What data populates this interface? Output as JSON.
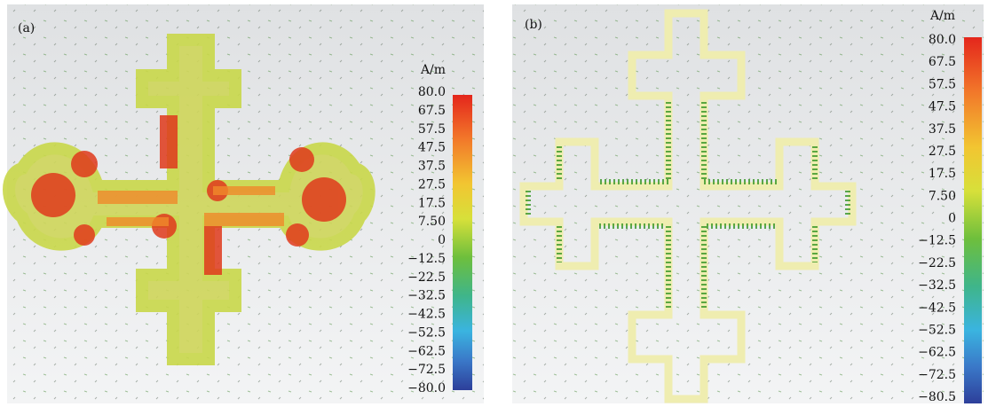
{
  "panels": [
    {
      "label": "(a)",
      "unit": "A/m",
      "colorbar_ticks": [
        "80.0",
        "67.5",
        "57.5",
        "47.5",
        "37.5",
        "27.5",
        "17.5",
        "7.50",
        "0",
        "−12.5",
        "−22.5",
        "−32.5",
        "−42.5",
        "−52.5",
        "−62.5",
        "−72.5",
        "−80.0"
      ]
    },
    {
      "label": "(b)",
      "unit": "A/m",
      "colorbar_ticks": [
        "80.0",
        "67.5",
        "57.5",
        "47.5",
        "37.5",
        "27.5",
        "17.5",
        "7.50",
        "0",
        "−12.5",
        "−22.5",
        "−32.5",
        "−42.5",
        "−52.5",
        "−62.5",
        "−72.5",
        "−80.5"
      ]
    }
  ]
}
